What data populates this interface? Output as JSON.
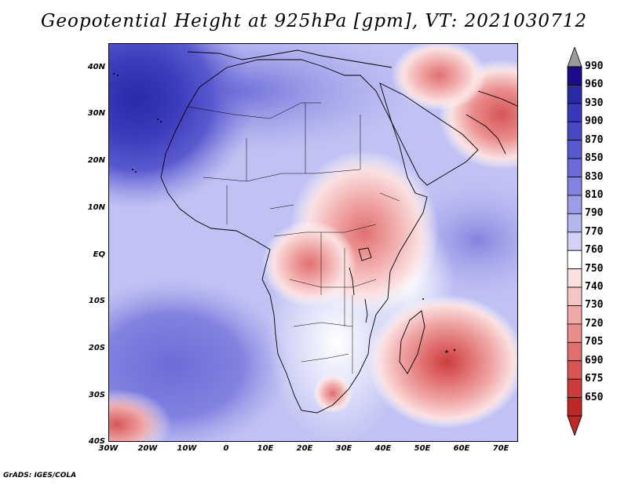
{
  "title": "Geopotential Height at 925hPa [gpm], VT: 2021030712",
  "credit": "GrADS: IGES/COLA",
  "map": {
    "region": "Africa and western Indian Ocean",
    "projection": "lat-lon",
    "lat_labels": [
      "40N",
      "30N",
      "20N",
      "10N",
      "EQ",
      "10S",
      "20S",
      "30S",
      "40S"
    ],
    "lon_labels": [
      "30W",
      "20W",
      "10W",
      "0",
      "10E",
      "20E",
      "30E",
      "40E",
      "50E",
      "60E",
      "70E"
    ],
    "features": [
      {
        "name": "low-height-center-madagascar-east",
        "label": "low near 20S 57E"
      },
      {
        "name": "low-height-east-africa",
        "label": "low over East Africa highlands"
      },
      {
        "name": "low-height-arabia-iran",
        "label": "low over Middle East"
      },
      {
        "name": "high-height-north-atlantic",
        "label": "high near 35N 25W"
      },
      {
        "name": "low-height-southwest-corner",
        "label": "low near 38S 28W"
      }
    ]
  },
  "colorbar": {
    "labels": [
      "990",
      "960",
      "930",
      "900",
      "870",
      "850",
      "830",
      "810",
      "790",
      "770",
      "760",
      "750",
      "740",
      "730",
      "720",
      "705",
      "690",
      "675",
      "650"
    ],
    "colors": [
      "#1a0c8c",
      "#2a2aa8",
      "#3838b8",
      "#4848c4",
      "#5a5acf",
      "#6c6cd8",
      "#8282e0",
      "#9c9ce8",
      "#b6b6ef",
      "#d2d2f6",
      "#ffffff",
      "#fbe0e0",
      "#f6c4c4",
      "#f0a8a8",
      "#ea8c8c",
      "#e07070",
      "#d65656",
      "#cc3c3c",
      "#c02828"
    ],
    "max_arrow_color": "#9a9a9a",
    "min_arrow_color": "#c02828"
  }
}
